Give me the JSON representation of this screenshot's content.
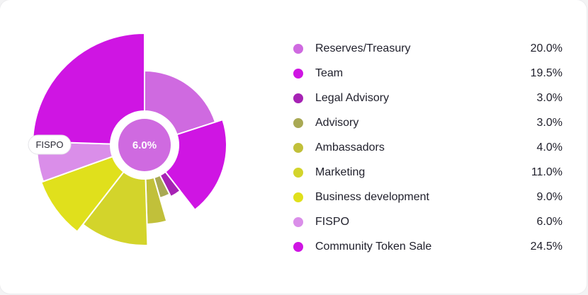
{
  "chart_data": {
    "type": "pie",
    "center_label": "6.0%",
    "highlighted_label": "FISPO",
    "slices": [
      {
        "label": "Reserves/Treasury",
        "value_text": "20.0%",
        "value": 20.0,
        "color": "#cf6ae0"
      },
      {
        "label": "Team",
        "value_text": "19.5%",
        "value": 19.5,
        "color": "#cf15e3"
      },
      {
        "label": "Legal Advisory",
        "value_text": "3.0%",
        "value": 3.0,
        "color": "#a623b4"
      },
      {
        "label": "Advisory",
        "value_text": "3.0%",
        "value": 3.0,
        "color": "#a9a954"
      },
      {
        "label": "Ambassadors",
        "value_text": "4.0%",
        "value": 4.0,
        "color": "#c1c03a"
      },
      {
        "label": "Marketing",
        "value_text": "11.0%",
        "value": 11.0,
        "color": "#d3d42b"
      },
      {
        "label": "Business development",
        "value_text": "9.0%",
        "value": 9.0,
        "color": "#e0e01c"
      },
      {
        "label": "FISPO",
        "value_text": "6.0%",
        "value": 6.0,
        "color": "#da8ee9"
      },
      {
        "label": "Community Token Sale",
        "value_text": "24.5%",
        "value": 24.5,
        "color": "#cf15e3"
      }
    ]
  }
}
